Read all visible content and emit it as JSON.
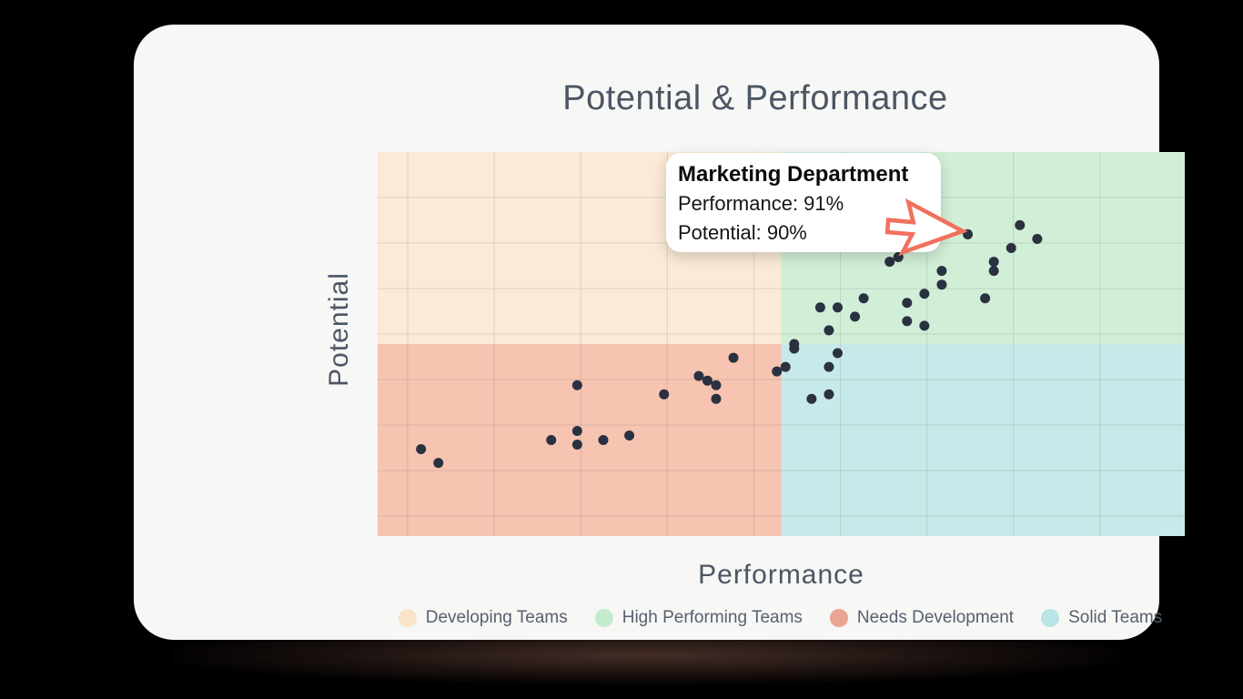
{
  "background_color": "#000000",
  "card": {
    "background": "#F7F7F6"
  },
  "chart_data": {
    "type": "scatter",
    "title": "Potential & Performance",
    "xlabel": "Performance",
    "ylabel": "Potential",
    "xlim": [
      23,
      116
    ],
    "ylim": [
      24,
      108
    ],
    "grid": true,
    "point_color": "#2A3140",
    "quadrant_split": {
      "x": 69.5,
      "y": 66
    },
    "quadrants": [
      {
        "name": "Developing Teams",
        "position": "top-left",
        "color": "#FAEAD6"
      },
      {
        "name": "High Performing Teams",
        "position": "top-right",
        "color": "#D1EFD7"
      },
      {
        "name": "Needs Development",
        "position": "bottom-left",
        "color": "#F6C4B1"
      },
      {
        "name": "Solid Teams",
        "position": "bottom-right",
        "color": "#C7E9E9"
      }
    ],
    "highlighted_point": {
      "label": "Marketing Department",
      "performance": 91,
      "potential": 90
    },
    "points": [
      {
        "performance": 97,
        "potential": 92
      },
      {
        "performance": 99,
        "potential": 89
      },
      {
        "performance": 96,
        "potential": 87
      },
      {
        "performance": 94,
        "potential": 84
      },
      {
        "performance": 94,
        "potential": 82
      },
      {
        "performance": 93,
        "potential": 76
      },
      {
        "performance": 88,
        "potential": 82
      },
      {
        "performance": 88,
        "potential": 79
      },
      {
        "performance": 86,
        "potential": 77
      },
      {
        "performance": 86,
        "potential": 70
      },
      {
        "performance": 84,
        "potential": 75
      },
      {
        "performance": 84,
        "potential": 71
      },
      {
        "performance": 83,
        "potential": 85
      },
      {
        "performance": 82,
        "potential": 84
      },
      {
        "performance": 79,
        "potential": 76
      },
      {
        "performance": 78,
        "potential": 72
      },
      {
        "performance": 76,
        "potential": 74
      },
      {
        "performance": 76,
        "potential": 64
      },
      {
        "performance": 75,
        "potential": 69
      },
      {
        "performance": 75,
        "potential": 61
      },
      {
        "performance": 75,
        "potential": 55
      },
      {
        "performance": 74,
        "potential": 74
      },
      {
        "performance": 73,
        "potential": 54
      },
      {
        "performance": 71,
        "potential": 66
      },
      {
        "performance": 71,
        "potential": 65
      },
      {
        "performance": 70,
        "potential": 61
      },
      {
        "performance": 69,
        "potential": 60
      },
      {
        "performance": 64,
        "potential": 63
      },
      {
        "performance": 62,
        "potential": 57
      },
      {
        "performance": 62,
        "potential": 54
      },
      {
        "performance": 61,
        "potential": 58
      },
      {
        "performance": 60,
        "potential": 59
      },
      {
        "performance": 56,
        "potential": 55
      },
      {
        "performance": 52,
        "potential": 46
      },
      {
        "performance": 49,
        "potential": 45
      },
      {
        "performance": 46,
        "potential": 57
      },
      {
        "performance": 46,
        "potential": 47
      },
      {
        "performance": 46,
        "potential": 44
      },
      {
        "performance": 43,
        "potential": 45
      },
      {
        "performance": 30,
        "potential": 40
      },
      {
        "performance": 28,
        "potential": 43
      }
    ]
  },
  "tooltip": {
    "title": "Marketing Department",
    "performance_line": "Performance: 91%",
    "potential_line": "Potential: 90%"
  },
  "legend": [
    {
      "label": "Developing Teams",
      "color": "#F9E4CB"
    },
    {
      "label": "High Performing Teams",
      "color": "#C3EBCD"
    },
    {
      "label": "Needs Development",
      "color": "#EBA491"
    },
    {
      "label": "Solid Teams",
      "color": "#BAE5E4"
    }
  ],
  "cursor_arrow_color": "#F1705E"
}
